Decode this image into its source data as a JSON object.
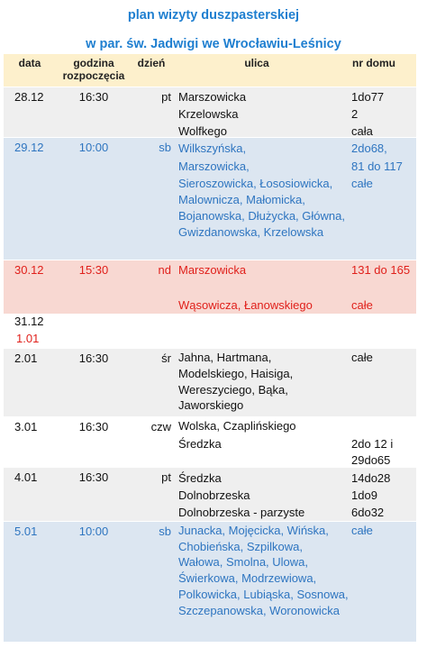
{
  "header": {
    "title": "plan wizyty duszpasterskiej",
    "subtitle": "w par. św. Jadwigi we Wrocławiu-Leśnicy"
  },
  "table": {
    "columns": [
      "data",
      "godzina rozpoczęcia",
      "dzień",
      "ulica",
      "nr domu"
    ],
    "rows": [
      {
        "dates": [
          "28.12"
        ],
        "time": "16:30",
        "day": "pt",
        "streets": [
          "Marszowicka",
          "Krzelowska",
          "Wolfkego"
        ],
        "numbers": [
          "1do77",
          "2",
          "cała"
        ]
      },
      {
        "dates": [
          "29.12"
        ],
        "time": "10:00",
        "day": "sb",
        "streets": [
          "Wilkszyńska,",
          "Marszowicka,",
          "Sieroszowicka, Łososiowicka,",
          "Malownicza, Małomicka,",
          "Bojanowska, Dłużycka, Główna,",
          "Gwizdanowska,  Krzelowska"
        ],
        "numbers": [
          "2do68,",
          "81 do 117",
          "całe"
        ]
      },
      {
        "dates": [
          "30.12"
        ],
        "time": "15:30",
        "day": "nd",
        "streets": [
          "Marszowicka",
          "Wąsowicza, Łanowskiego"
        ],
        "numbers": [
          "131 do 165",
          "całe"
        ]
      },
      {
        "dates": [
          "31.12",
          "1.01"
        ],
        "time": "",
        "day": "",
        "streets": [],
        "numbers": []
      },
      {
        "dates": [
          "2.01"
        ],
        "time": "16:30",
        "day": "śr",
        "streets": [
          "Jahna,  Hartmana,",
          "Modelskiego, Haisiga,",
          "Wereszyciego, Bąka,",
          "Jaworskiego"
        ],
        "numbers": [
          "całe"
        ]
      },
      {
        "dates": [
          "3.01"
        ],
        "time": "16:30",
        "day": "czw",
        "streets": [
          "Wolska, Czaplińskiego",
          "Średzka"
        ],
        "numbers": [
          "2do 12 i",
          "29do65"
        ]
      },
      {
        "dates": [
          "4.01"
        ],
        "time": "16:30",
        "day": "pt",
        "streets": [
          "Średzka",
          "Dolnobrzeska",
          "Dolnobrzeska - parzyste"
        ],
        "numbers": [
          "14do28",
          "1do9",
          "6do32"
        ]
      },
      {
        "dates": [
          "5.01"
        ],
        "time": "10:00",
        "day": "sb",
        "streets": [
          "Junacka, Mojęcicka, Wińska,",
          "Chobieńska, Szpilkowa,",
          "Wałowa, Smolna, Ulowa,",
          "Świerkowa, Modrzewiowa,",
          "Polkowicka, Lubiąska, Sosnowa,",
          "Szczepanowska, Woronowicka"
        ],
        "numbers": [
          "całe"
        ]
      }
    ]
  }
}
